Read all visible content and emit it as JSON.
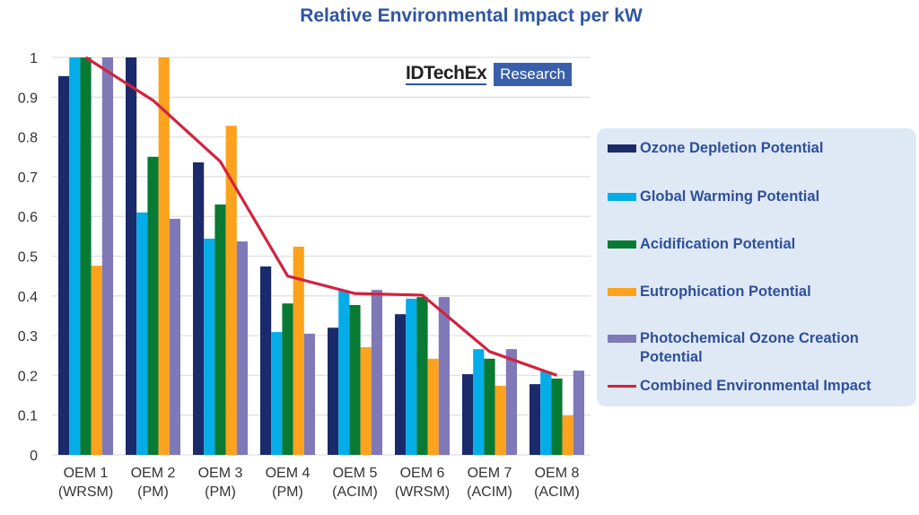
{
  "chart_data": {
    "type": "bar",
    "title": "Relative Environmental Impact per kW",
    "xlabel": "",
    "ylabel": "",
    "ylim": [
      0,
      1
    ],
    "yticks": [
      "0",
      "0.1",
      "0.2",
      "0.3",
      "0.4",
      "0.5",
      "0.6",
      "0.7",
      "0.8",
      "0.9",
      "1"
    ],
    "grid": true,
    "legend_position": "right",
    "categories": [
      [
        "OEM 1",
        "(WRSM)"
      ],
      [
        "OEM 2",
        "(PM)"
      ],
      [
        "OEM 3",
        "(PM)"
      ],
      [
        "OEM 4",
        "(PM)"
      ],
      [
        "OEM 5",
        "(ACIM)"
      ],
      [
        "OEM 6",
        "(WRSM)"
      ],
      [
        "OEM 7",
        "(ACIM)"
      ],
      [
        "OEM 8",
        "(ACIM)"
      ]
    ],
    "series": [
      {
        "name": "Ozone Depletion Potential",
        "type": "bar",
        "color": "#1b2a6b",
        "values": [
          0.953,
          1.0,
          0.736,
          0.474,
          0.32,
          0.354,
          0.203,
          0.178
        ]
      },
      {
        "name": "Global Warming Potential",
        "type": "bar",
        "color": "#05ade8",
        "values": [
          1.0,
          0.61,
          0.544,
          0.309,
          0.413,
          0.393,
          0.266,
          0.21
        ]
      },
      {
        "name": "Acidification Potential",
        "type": "bar",
        "color": "#087a33",
        "values": [
          1.0,
          0.75,
          0.63,
          0.381,
          0.377,
          0.397,
          0.242,
          0.192
        ]
      },
      {
        "name": "Eutrophication Potential",
        "type": "bar",
        "color": "#fca21c",
        "values": [
          0.476,
          1.0,
          0.828,
          0.524,
          0.271,
          0.242,
          0.174,
          0.099
        ]
      },
      {
        "name": "Photochemical Ozone Creation Potential",
        "type": "bar",
        "color": "#7f79b8",
        "values": [
          1.0,
          0.594,
          0.537,
          0.305,
          0.415,
          0.397,
          0.266,
          0.212
        ]
      },
      {
        "name": "Combined Environmental Impact",
        "type": "line",
        "color": "#d3223e",
        "values": [
          1.0,
          0.892,
          0.738,
          0.45,
          0.406,
          0.402,
          0.26,
          0.2
        ]
      }
    ]
  },
  "logo": {
    "brand": "IDTechEx",
    "tag": "Research"
  },
  "legend": {
    "labels": [
      "Ozone Depletion Potential",
      "Global Warming Potential",
      "Acidification Potential",
      "Eutrophication Potential",
      "Photochemical Ozone Creation Potential",
      "Combined Environmental Impact"
    ]
  }
}
